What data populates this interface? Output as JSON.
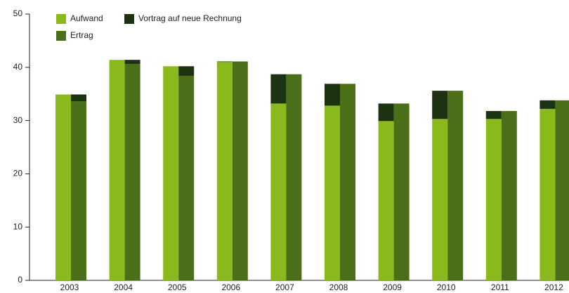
{
  "chart_data": {
    "type": "bar",
    "categories": [
      "2003",
      "2004",
      "2005",
      "2006",
      "2007",
      "2008",
      "2009",
      "2010",
      "2011",
      "2012"
    ],
    "series": [
      {
        "name": "Aufwand",
        "color": "#8ab91c",
        "values": [
          34.9,
          41.4,
          40.2,
          41.0,
          33.2,
          32.8,
          29.9,
          30.3,
          30.3,
          32.2
        ]
      },
      {
        "name": "Ertrag",
        "color": "#4b6e18",
        "values": [
          33.6,
          40.6,
          38.4,
          41.1,
          38.7,
          36.9,
          33.2,
          35.6,
          31.8,
          33.8
        ]
      },
      {
        "name": "Vortrag auf neue Rechnung",
        "color": "#1c3210",
        "values": [
          1.3,
          0.8,
          1.8,
          0.1,
          5.5,
          4.1,
          3.3,
          5.3,
          1.5,
          1.6
        ]
      }
    ],
    "ylim": [
      0,
      50
    ],
    "yticks": [
      0,
      10,
      20,
      30,
      40,
      50
    ]
  }
}
